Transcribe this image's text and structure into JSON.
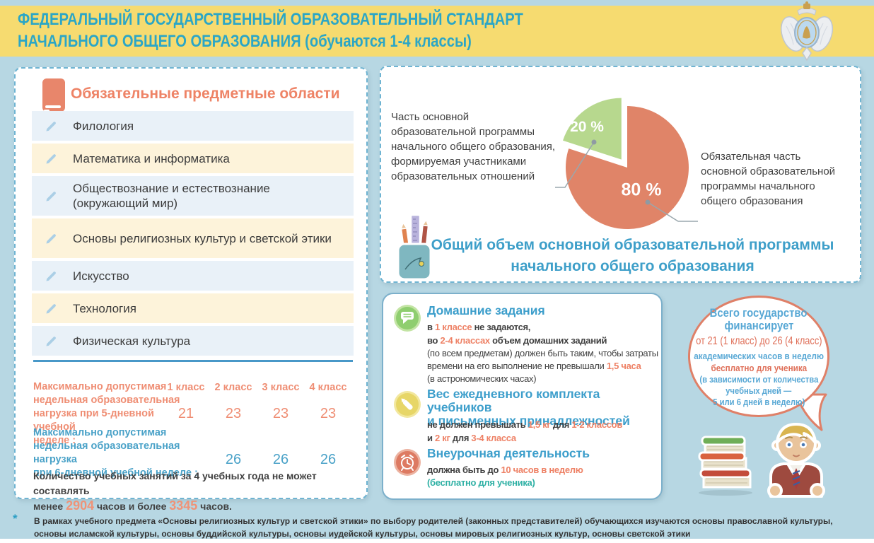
{
  "header": {
    "title_line1": "ФЕДЕРАЛЬНЫЙ ГОСУДАРСТВЕННЫЙ ОБРАЗОВАТЕЛЬНЫЙ СТАНДАРТ",
    "title_line2": "НАЧАЛЬНОГО ОБЩЕГО ОБРАЗОВАНИЯ (обучаются 1-4 классы)",
    "emblem_icon": "ministry-emblem"
  },
  "colors": {
    "background": "#b7d7e3",
    "band_yellow": "#f6db70",
    "header_text": "#2ba6c6",
    "coral": "#ee8366",
    "blue": "#3e9fc9",
    "teal": "#2eb0a4",
    "green_slice": "#b7d88e",
    "coral_slice": "#e08468"
  },
  "subjects": {
    "title": "Обязательные предметные области",
    "icon": "book-icon",
    "items": [
      "Филология",
      "Математика и информатика",
      "Обществознание и естествознание (окружающий мир)",
      "Основы религиозных культур и светской этики",
      "Искусство",
      "Технология",
      "Физическая культура"
    ]
  },
  "load_table": {
    "columns": [
      "1 класс",
      "2 класс",
      "3 класс",
      "4 класс"
    ],
    "five_day_label": "Максимально допустимая\nнедельная  образовательная\nнагрузка при 5-дневной учебной\nнеделе :",
    "five_day_values": [
      "21",
      "23",
      "23",
      "23"
    ],
    "six_day_label": "Максимально допустимая\nнедельная образовательная нагрузка\nпри 6-дневной учебной неделе :",
    "six_day_values": [
      "26",
      "26",
      "26"
    ],
    "note_segments": [
      {
        "t": "Количество учебных занятий за 4 учебных года не может составлять\nменее ",
        "c": "darknote"
      },
      {
        "t": "2904",
        "c": "coralbig"
      },
      {
        "t": " часов и более ",
        "c": "darknote"
      },
      {
        "t": "3345",
        "c": "coralbig"
      },
      {
        "t": " часов.",
        "c": "darknote"
      }
    ]
  },
  "chart_data": {
    "type": "pie",
    "title": "Общий объем основной образовательной программы\nначального общего образования",
    "slices": [
      {
        "label": "20 %",
        "value": 20,
        "color": "#b7d88e",
        "explode": 14,
        "description": "Часть основной\nобразовательной программы\nначального общего образования,\nформируемая участниками\nобразовательных отношений"
      },
      {
        "label": "80 %",
        "value": 80,
        "color": "#e08468",
        "explode": 0,
        "description": "Обязательная часть\nосновной образовательной\nпрограммы начального\nобщего образования"
      }
    ],
    "start_angle_deg": -90,
    "direction": "counterclockwise",
    "legend_position": "side-callouts"
  },
  "rules": {
    "homework": {
      "icon": "chat-bubble-icon",
      "title": "Домашние задания",
      "lines": [
        [
          {
            "t": "в ",
            "c": "darkb"
          },
          {
            "t": "1 классе",
            "c": "coral"
          },
          {
            "t": " не задаются,",
            "c": "darkb"
          }
        ],
        [
          {
            "t": "во ",
            "c": "darkb"
          },
          {
            "t": "2-4 классах",
            "c": "coral"
          },
          {
            "t": " объем домашних заданий",
            "c": "darkb"
          }
        ],
        [
          {
            "t": "(по всем предметам) должен быть таким, чтобы затраты",
            "c": "dark"
          }
        ],
        [
          {
            "t": "времени на его выполнение не превышали ",
            "c": "dark"
          },
          {
            "t": "1,5 часа",
            "c": "coral"
          }
        ],
        [
          {
            "t": "(в астрономических часах)",
            "c": "dark"
          }
        ]
      ]
    },
    "weight": {
      "icon": "pencil-stroke-icon",
      "title": "Вес ежедневного комплекта учебников\nи письменных принадлежностей",
      "lines": [
        [
          {
            "t": "не должен превышать ",
            "c": "darkb"
          },
          {
            "t": "1,5 кг",
            "c": "coral"
          },
          {
            "t": " для ",
            "c": "darkb"
          },
          {
            "t": "1-2 классов",
            "c": "coral"
          }
        ],
        [
          {
            "t": "и ",
            "c": "darkb"
          },
          {
            "t": "2 кг",
            "c": "coral"
          },
          {
            "t": " для ",
            "c": "darkb"
          },
          {
            "t": "3-4 класса",
            "c": "coral"
          }
        ]
      ]
    },
    "extracurricular": {
      "icon": "alarm-clock-icon",
      "title": "Внеурочная деятельность",
      "lines": [
        [
          {
            "t": "должна быть до ",
            "c": "darkb"
          },
          {
            "t": "10 часов в неделю",
            "c": "coral"
          }
        ],
        [
          {
            "t": "(бесплатно для ученика)",
            "c": "teal"
          }
        ]
      ]
    }
  },
  "bubble": {
    "lines": [
      "Всего государство",
      "финансирует",
      "от 21 (1 класс) до 26 (4 класс)",
      "академических часов в неделю",
      "бесплатно для ученика",
      "(в зависимости от количества",
      "учебных дней —",
      "5 или 6 дней в неделю)"
    ]
  },
  "footnote": {
    "asterisk": "*",
    "line1": "В рамках учебного предмета «Основы религиозных культур и светской этики» по выбору родителей (законных представителей) обучающихся изучаются основы православной культуры,",
    "line2": "основы исламской культуры, основы буддийской культуры, основы иудейской культуры, основы мировых религиозных культур, основы светской этики"
  }
}
